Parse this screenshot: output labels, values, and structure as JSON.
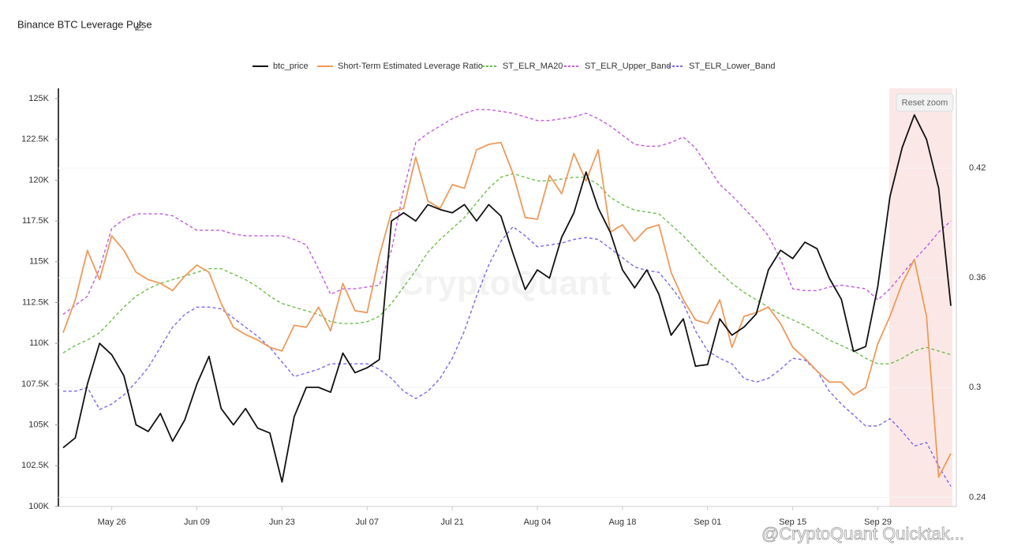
{
  "chart_data": {
    "type": "line",
    "title": "Binance BTC Leverage Pulse",
    "button": "Reset zoom",
    "watermark": "CryptoQuant",
    "footer_watermark": "@CryptoQuant Quicktak...",
    "legend": "top",
    "grid": true,
    "categories": [
      "May 18",
      "May 20",
      "May 22",
      "May 24",
      "May 26",
      "May 28",
      "May 30",
      "Jun 01",
      "Jun 03",
      "Jun 05",
      "Jun 07",
      "Jun 09",
      "Jun 11",
      "Jun 13",
      "Jun 15",
      "Jun 17",
      "Jun 19",
      "Jun 21",
      "Jun 23",
      "Jun 25",
      "Jun 27",
      "Jun 29",
      "Jul 01",
      "Jul 03",
      "Jul 05",
      "Jul 07",
      "Jul 09",
      "Jul 11",
      "Jul 13",
      "Jul 15",
      "Jul 17",
      "Jul 19",
      "Jul 21",
      "Jul 23",
      "Jul 25",
      "Jul 27",
      "Jul 29",
      "Jul 31",
      "Aug 02",
      "Aug 04",
      "Aug 06",
      "Aug 08",
      "Aug 10",
      "Aug 12",
      "Aug 14",
      "Aug 16",
      "Aug 18",
      "Aug 20",
      "Aug 22",
      "Aug 24",
      "Aug 26",
      "Aug 28",
      "Aug 30",
      "Sep 01",
      "Sep 03",
      "Sep 05",
      "Sep 07",
      "Sep 09",
      "Sep 11",
      "Sep 13",
      "Sep 15",
      "Sep 17",
      "Sep 19",
      "Sep 21",
      "Sep 23",
      "Sep 25",
      "Sep 27",
      "Sep 29",
      "Oct 01",
      "Oct 03",
      "Oct 05",
      "Oct 07",
      "Oct 09",
      "Oct 11"
    ],
    "xticks": [
      "May 26",
      "Jun 09",
      "Jun 23",
      "Jul 07",
      "Jul 21",
      "Aug 04",
      "Aug 18",
      "Sep 01",
      "Sep 15",
      "Sep 29"
    ],
    "ylim": [
      100000,
      125000
    ],
    "yticks": [
      {
        "value": 100000,
        "label": "100K"
      },
      {
        "value": 102500,
        "label": "102.5K"
      },
      {
        "value": 105000,
        "label": "105K"
      },
      {
        "value": 107500,
        "label": "107.5K"
      },
      {
        "value": 110000,
        "label": "110K"
      },
      {
        "value": 112500,
        "label": "112.5K"
      },
      {
        "value": 115000,
        "label": "115K"
      },
      {
        "value": 117500,
        "label": "117.5K"
      },
      {
        "value": 120000,
        "label": "120K"
      },
      {
        "value": 122500,
        "label": "122.5K"
      },
      {
        "value": 125000,
        "label": "125K"
      }
    ],
    "y2lim": [
      0.235,
      0.458
    ],
    "y2ticks": [
      0.24,
      0.3,
      0.36,
      0.42
    ],
    "series": [
      {
        "name": "btc_price",
        "color": "#111111",
        "dashed": false,
        "values": [
          103600,
          104200,
          107500,
          110000,
          109300,
          108000,
          105000,
          104600,
          105700,
          104000,
          105300,
          107500,
          109200,
          106000,
          105000,
          106000,
          104800,
          104500,
          101500,
          105500,
          107300,
          107300,
          107000,
          109400,
          108200,
          108500,
          109000,
          117500,
          118000,
          117500,
          118500,
          118200,
          118000,
          118500,
          117500,
          118500,
          117800,
          115500,
          113300,
          114500,
          114000,
          116500,
          118000,
          120500,
          118300,
          116800,
          114500,
          113400,
          114500,
          113000,
          110500,
          111500,
          108600,
          108700,
          111500,
          110500,
          111000,
          111800,
          114500,
          115700,
          115200,
          116200,
          115800,
          114000,
          112700,
          109500,
          109800,
          113500,
          119000,
          122000,
          124000,
          122500,
          119500,
          112300
        ]
      },
      {
        "name": "Short-Term Estimated Leverage Ratio",
        "color": "#ef9a5a",
        "dashed": false,
        "axis": "y2",
        "values": [
          0.33,
          0.348,
          0.375,
          0.359,
          0.383,
          0.375,
          0.363,
          0.359,
          0.357,
          0.353,
          0.361,
          0.367,
          0.363,
          0.346,
          0.333,
          0.329,
          0.326,
          0.322,
          0.32,
          0.334,
          0.333,
          0.344,
          0.331,
          0.357,
          0.342,
          0.341,
          0.372,
          0.396,
          0.398,
          0.426,
          0.402,
          0.398,
          0.411,
          0.409,
          0.43,
          0.433,
          0.434,
          0.417,
          0.393,
          0.392,
          0.416,
          0.406,
          0.428,
          0.413,
          0.43,
          0.385,
          0.389,
          0.38,
          0.387,
          0.389,
          0.363,
          0.348,
          0.337,
          0.335,
          0.348,
          0.322,
          0.339,
          0.341,
          0.344,
          0.335,
          0.322,
          0.316,
          0.309,
          0.303,
          0.303,
          0.296,
          0.3,
          0.324,
          0.339,
          0.357,
          0.37,
          0.339,
          0.251,
          0.264
        ]
      },
      {
        "name": "ST_ELR_MA20",
        "color": "#6cbf4a",
        "dashed": true,
        "axis": "y2",
        "values": [
          0.319,
          0.323,
          0.326,
          0.33,
          0.337,
          0.344,
          0.35,
          0.354,
          0.357,
          0.359,
          0.361,
          0.363,
          0.365,
          0.365,
          0.362,
          0.359,
          0.355,
          0.35,
          0.346,
          0.344,
          0.342,
          0.34,
          0.336,
          0.335,
          0.335,
          0.336,
          0.339,
          0.346,
          0.355,
          0.364,
          0.374,
          0.381,
          0.387,
          0.393,
          0.401,
          0.409,
          0.415,
          0.417,
          0.415,
          0.413,
          0.413,
          0.414,
          0.415,
          0.415,
          0.411,
          0.404,
          0.4,
          0.397,
          0.396,
          0.395,
          0.389,
          0.383,
          0.376,
          0.369,
          0.363,
          0.357,
          0.352,
          0.348,
          0.344,
          0.34,
          0.337,
          0.334,
          0.33,
          0.326,
          0.323,
          0.32,
          0.316,
          0.313,
          0.313,
          0.316,
          0.32,
          0.322,
          0.32,
          0.318
        ]
      },
      {
        "name": "ST_ELR_Upper_Band",
        "color": "#c05ce0",
        "dashed": true,
        "axis": "y2",
        "values": [
          0.34,
          0.345,
          0.35,
          0.365,
          0.387,
          0.392,
          0.395,
          0.395,
          0.395,
          0.394,
          0.39,
          0.386,
          0.386,
          0.386,
          0.384,
          0.383,
          0.383,
          0.383,
          0.383,
          0.381,
          0.378,
          0.365,
          0.351,
          0.354,
          0.354,
          0.355,
          0.356,
          0.375,
          0.408,
          0.434,
          0.439,
          0.443,
          0.447,
          0.45,
          0.452,
          0.452,
          0.451,
          0.45,
          0.448,
          0.446,
          0.446,
          0.447,
          0.448,
          0.45,
          0.447,
          0.443,
          0.438,
          0.433,
          0.432,
          0.432,
          0.434,
          0.437,
          0.431,
          0.421,
          0.411,
          0.405,
          0.398,
          0.391,
          0.383,
          0.37,
          0.354,
          0.353,
          0.353,
          0.355,
          0.356,
          0.355,
          0.354,
          0.348,
          0.354,
          0.362,
          0.37,
          0.377,
          0.385,
          0.391
        ]
      },
      {
        "name": "ST_ELR_Lower_Band",
        "color": "#7b68ee",
        "dashed": true,
        "axis": "y2",
        "values": [
          0.298,
          0.298,
          0.3,
          0.288,
          0.291,
          0.296,
          0.303,
          0.311,
          0.322,
          0.333,
          0.34,
          0.344,
          0.344,
          0.343,
          0.338,
          0.333,
          0.328,
          0.322,
          0.314,
          0.306,
          0.308,
          0.31,
          0.313,
          0.313,
          0.313,
          0.313,
          0.31,
          0.305,
          0.298,
          0.294,
          0.298,
          0.305,
          0.316,
          0.331,
          0.35,
          0.367,
          0.38,
          0.388,
          0.383,
          0.377,
          0.378,
          0.379,
          0.381,
          0.382,
          0.381,
          0.376,
          0.371,
          0.366,
          0.364,
          0.363,
          0.355,
          0.346,
          0.331,
          0.32,
          0.316,
          0.313,
          0.305,
          0.303,
          0.305,
          0.31,
          0.316,
          0.315,
          0.309,
          0.298,
          0.291,
          0.285,
          0.279,
          0.279,
          0.283,
          0.276,
          0.268,
          0.27,
          0.257,
          0.246
        ]
      }
    ]
  }
}
